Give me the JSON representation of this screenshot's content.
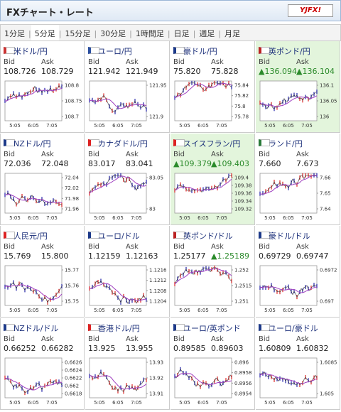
{
  "header": {
    "title": "FXチャート・レート",
    "logo": "YJFX!"
  },
  "tabs": [
    "1分足",
    "5分足",
    "15分足",
    "30分足",
    "1時間足",
    "日足",
    "週足",
    "月足"
  ],
  "selected_tab": 1,
  "labels": {
    "bid": "Bid",
    "ask": "Ask"
  },
  "time_labels": [
    "5:05",
    "6:05",
    "7:05"
  ],
  "pairs": [
    {
      "name": "米ドル/円",
      "bid": "108.726",
      "ask": "108.729",
      "yticks": [
        108.8,
        108.75,
        108.7
      ]
    },
    {
      "name": "ユーロ/円",
      "bid": "121.942",
      "ask": "121.949",
      "yticks": [
        121.95,
        121.9
      ]
    },
    {
      "name": "豪ドル/円",
      "bid": "75.820",
      "ask": "75.828",
      "yticks": [
        75.84,
        75.82,
        75.8,
        75.78
      ]
    },
    {
      "name": "英ポンド/円",
      "bid": "136.094",
      "ask": "136.104",
      "yticks": [
        136.1,
        136.05,
        136
      ],
      "highlight": true,
      "bid_up": true,
      "ask_up": true
    },
    {
      "name": "NZドル/円",
      "bid": "72.036",
      "ask": "72.048",
      "yticks": [
        72.04,
        72.02,
        71.98,
        71.96
      ]
    },
    {
      "name": "カナダドル/円",
      "bid": "83.017",
      "ask": "83.041",
      "yticks": [
        83.05,
        83
      ]
    },
    {
      "name": "スイスフラン/円",
      "bid": "109.379",
      "ask": "109.403",
      "yticks": [
        109.4,
        109.38,
        109.36,
        109.34,
        109.32
      ],
      "highlight": true,
      "bid_up": true,
      "ask_up": true
    },
    {
      "name": "ランド/円",
      "bid": "7.660",
      "ask": "7.673",
      "yticks": [
        7.66,
        7.65,
        7.64
      ]
    },
    {
      "name": "人民元/円",
      "bid": "15.769",
      "ask": "15.800",
      "yticks": [
        15.77,
        15.76,
        15.75
      ]
    },
    {
      "name": "ユーロ/ドル",
      "bid": "1.12159",
      "ask": "1.12163",
      "yticks": [
        1.1216,
        1.1212,
        1.1208,
        1.1204
      ]
    },
    {
      "name": "英ポンド/ドル",
      "bid": "1.25177",
      "ask": "1.25189",
      "yticks": [
        1.252,
        1.2515,
        1.251
      ],
      "ask_up": true
    },
    {
      "name": "豪ドル/ドル",
      "bid": "0.69729",
      "ask": "0.69747",
      "yticks": [
        0.6972,
        0.697
      ]
    },
    {
      "name": "NZドル/ドル",
      "bid": "0.66252",
      "ask": "0.66282",
      "yticks": [
        0.6626,
        0.6624,
        0.6622,
        0.662,
        0.6618
      ]
    },
    {
      "name": "香港ドル/円",
      "bid": "13.925",
      "ask": "13.955",
      "yticks": [
        13.93,
        13.92,
        13.91
      ]
    },
    {
      "name": "ユーロ/英ポンド",
      "bid": "0.89585",
      "ask": "0.89603",
      "yticks": [
        0.896,
        0.8958,
        0.8956,
        0.8954
      ]
    },
    {
      "name": "ユーロ/豪ドル",
      "bid": "1.60809",
      "ask": "1.60832",
      "yticks": [
        1.6085,
        1.605
      ]
    }
  ]
}
